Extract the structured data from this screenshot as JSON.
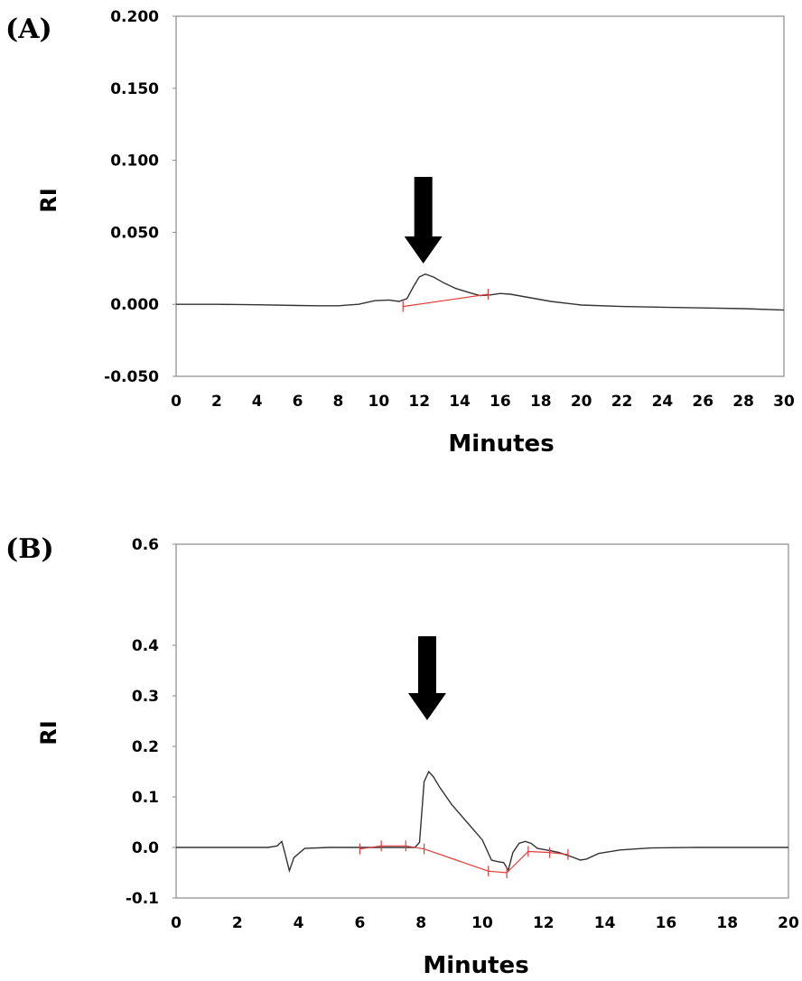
{
  "chart_data": [
    {
      "type": "line",
      "panel_label": "(A)",
      "xlabel": "Minutes",
      "ylabel": "RI",
      "xlim": [
        0,
        30
      ],
      "ylim": [
        -0.05,
        0.2
      ],
      "x_ticks": [
        "0",
        "2",
        "4",
        "6",
        "8",
        "10",
        "12",
        "14",
        "16",
        "18",
        "20",
        "22",
        "24",
        "26",
        "28",
        "30"
      ],
      "y_ticks": [
        "0.200",
        "0.150",
        "0.100",
        "0.050",
        "0.000",
        "-0.050"
      ],
      "grid": false,
      "arrow_at_x": 12.2,
      "series": [
        {
          "color": "#333333",
          "x": [
            0,
            2,
            4,
            6,
            7,
            8,
            9,
            9.8,
            10.5,
            11.0,
            11.4,
            11.7,
            12.0,
            12.3,
            12.7,
            13.2,
            13.8,
            14.5,
            15.0,
            15.5,
            16.0,
            16.5,
            17.5,
            18.5,
            20,
            22,
            24,
            26,
            28,
            30
          ],
          "y": [
            0.0,
            0.0,
            -0.0003,
            -0.0008,
            -0.001,
            -0.001,
            0.0,
            0.0025,
            0.003,
            0.002,
            0.004,
            0.012,
            0.019,
            0.021,
            0.019,
            0.015,
            0.011,
            0.008,
            0.006,
            0.0065,
            0.0075,
            0.007,
            0.0045,
            0.002,
            -0.0005,
            -0.0015,
            -0.002,
            -0.0025,
            -0.003,
            -0.004
          ]
        },
        {
          "color": "#e23b3b",
          "x": [
            11.2,
            15.4
          ],
          "y": [
            -0.0015,
            0.007
          ]
        }
      ]
    },
    {
      "type": "line",
      "panel_label": "(B)",
      "xlabel": "Minutes",
      "ylabel": "RI",
      "xlim": [
        0,
        20
      ],
      "ylim": [
        -0.1,
        0.6
      ],
      "x_ticks": [
        "0",
        "2",
        "4",
        "6",
        "8",
        "10",
        "12",
        "14",
        "16",
        "18",
        "20"
      ],
      "y_ticks": [
        "0.6",
        "0.4",
        "0.3",
        "0.2",
        "0.1",
        "0.0",
        "-0.1"
      ],
      "grid": false,
      "arrow_at_x": 8.2,
      "series": [
        {
          "color": "#333333",
          "x": [
            0,
            1,
            2,
            3,
            3.3,
            3.45,
            3.55,
            3.7,
            3.85,
            4.2,
            5,
            6,
            7,
            7.8,
            7.95,
            8.1,
            8.25,
            8.4,
            8.6,
            9.0,
            9.5,
            10.0,
            10.3,
            10.5,
            10.7,
            10.85,
            11.0,
            11.2,
            11.4,
            11.6,
            11.8,
            12.1,
            12.5,
            12.9,
            13.2,
            13.4,
            13.8,
            14.5,
            15.5,
            17,
            18.5,
            20
          ],
          "y": [
            0.0,
            0.0,
            0.0,
            0.0,
            0.003,
            0.012,
            -0.01,
            -0.046,
            -0.02,
            -0.002,
            0.0,
            0.0,
            0.0,
            0.0,
            0.01,
            0.13,
            0.15,
            0.14,
            0.12,
            0.085,
            0.05,
            0.015,
            -0.025,
            -0.028,
            -0.03,
            -0.045,
            -0.01,
            0.008,
            0.012,
            0.008,
            -0.002,
            -0.005,
            -0.01,
            -0.018,
            -0.025,
            -0.023,
            -0.012,
            -0.005,
            -0.001,
            0.0,
            0.0,
            0.0
          ]
        },
        {
          "color": "#e23b3b",
          "x": [
            6.0,
            6.7,
            7.5,
            8.1,
            10.2,
            10.8,
            11.5,
            12.2,
            12.8
          ],
          "y": [
            -0.003,
            0.003,
            0.003,
            -0.003,
            -0.047,
            -0.05,
            -0.008,
            -0.01,
            -0.014
          ]
        }
      ]
    }
  ]
}
